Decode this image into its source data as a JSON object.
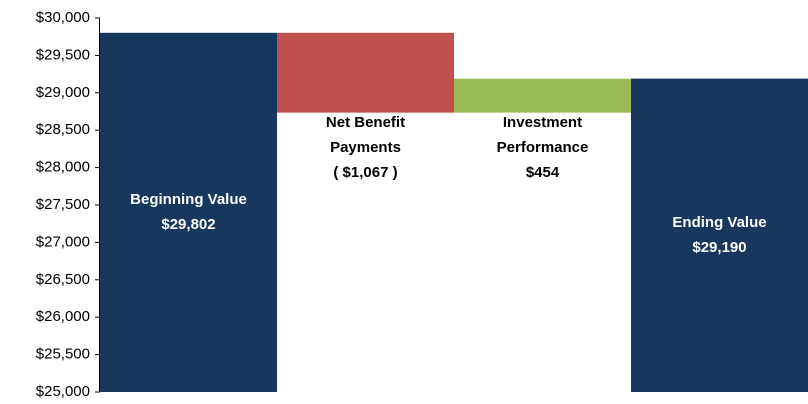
{
  "chart_data": {
    "type": "waterfall",
    "categories": [
      "Beginning Value",
      "Net Benefit Payments",
      "Investment Performance",
      "Ending Value"
    ],
    "values": [
      29802,
      -1067,
      454,
      29190
    ],
    "value_labels": [
      "$29,802",
      "( $1,067 )",
      "$454",
      "$29,190"
    ],
    "kinds": [
      "total",
      "delta",
      "delta",
      "total"
    ],
    "colors": [
      "#17375e",
      "#c0504d",
      "#9bbb59",
      "#17375e"
    ],
    "ylim": [
      25000,
      30000
    ],
    "yticks": [
      {
        "value": 25000,
        "label": "$25,000"
      },
      {
        "value": 25500,
        "label": "$25,500"
      },
      {
        "value": 26000,
        "label": "$26,000"
      },
      {
        "value": 26500,
        "label": "$26,500"
      },
      {
        "value": 27000,
        "label": "$27,000"
      },
      {
        "value": 27500,
        "label": "$27,500"
      },
      {
        "value": 28000,
        "label": "$28,000"
      },
      {
        "value": 28500,
        "label": "$28,500"
      },
      {
        "value": 29000,
        "label": "$29,000"
      },
      {
        "value": 29500,
        "label": "$29,500"
      },
      {
        "value": 30000,
        "label": "$30,000"
      }
    ]
  }
}
